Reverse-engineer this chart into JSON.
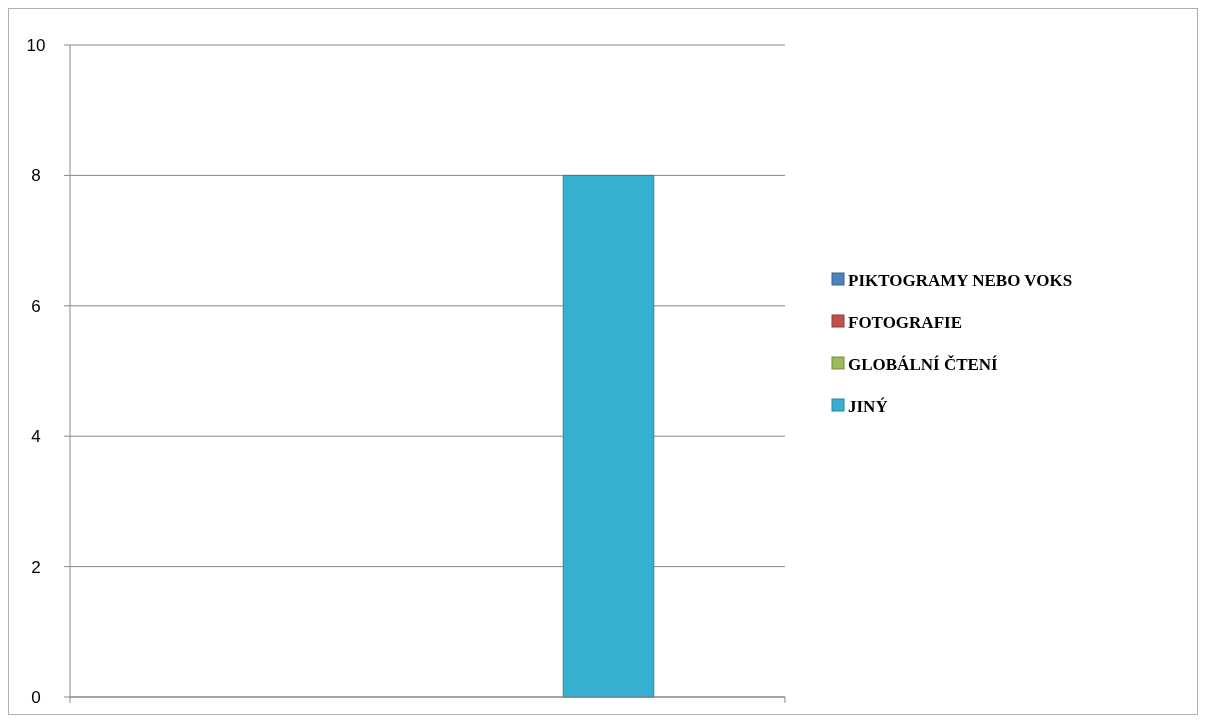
{
  "chart_data": {
    "type": "bar",
    "categories": [
      null
    ],
    "series": [
      {
        "name": "PIKTOGRAMY NEBO VOKS",
        "color": "#4f81bd",
        "values": [
          0
        ]
      },
      {
        "name": "FOTOGRAFIE",
        "color": "#c0504d",
        "values": [
          0
        ]
      },
      {
        "name": "GLOBÁLNÍ ČTENÍ",
        "color": "#9bbb59",
        "values": [
          0
        ]
      },
      {
        "color": "#8064a2",
        "values": [
          0
        ]
      },
      {
        "name": "JINÝ",
        "color": "#37afd0",
        "values": [
          8
        ]
      }
    ],
    "ylim": [
      0,
      10
    ],
    "yticks": [
      0,
      2,
      4,
      6,
      8,
      10
    ],
    "grid": "y",
    "legend": "right"
  }
}
